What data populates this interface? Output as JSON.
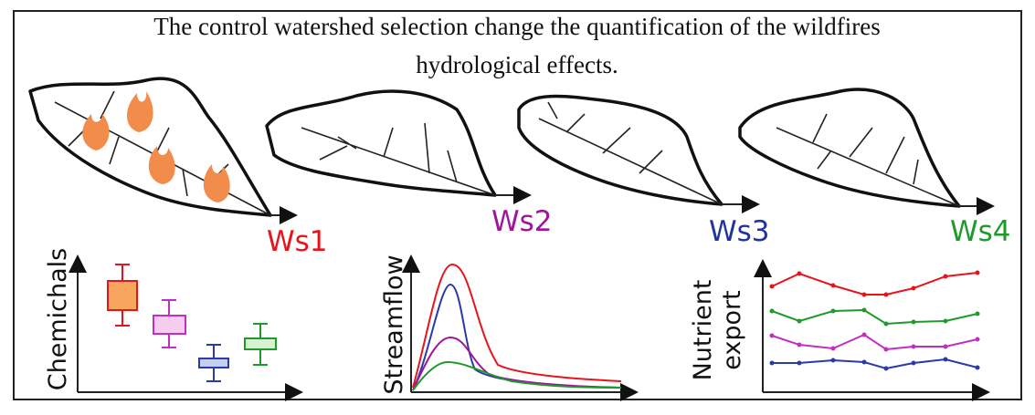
{
  "title": {
    "lines": [
      "The control watershed selection change the quantification of the wildfires",
      "hydrological effects."
    ]
  },
  "watersheds": [
    {
      "label": "Ws1",
      "color": "#e8141c"
    },
    {
      "label": "Ws2",
      "color": "#a0149b"
    },
    {
      "label": "Ws3",
      "color": "#2233a0"
    },
    {
      "label": "Ws4",
      "color": "#1f9a2a"
    }
  ],
  "panels": [
    {
      "axis_label": {
        "lines": [
          "Chemichals"
        ]
      }
    },
    {
      "axis_label": {
        "lines": [
          "Streamflow"
        ]
      }
    },
    {
      "axis_label": {
        "lines": [
          "Nutrient",
          "export"
        ]
      }
    }
  ]
}
